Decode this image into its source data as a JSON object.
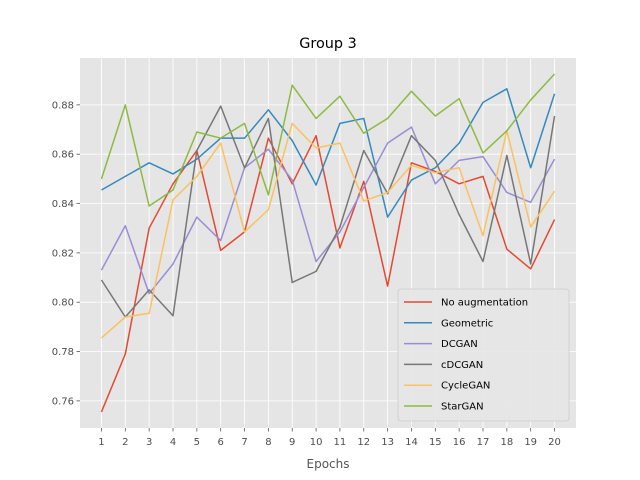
{
  "chart_data": {
    "type": "line",
    "title": "Group 3",
    "xlabel": "Epochs",
    "ylabel": "",
    "x": [
      1,
      2,
      3,
      4,
      5,
      6,
      7,
      8,
      9,
      10,
      11,
      12,
      13,
      14,
      15,
      16,
      17,
      18,
      19,
      20
    ],
    "x_ticks": [
      "1",
      "2",
      "3",
      "4",
      "5",
      "6",
      "7",
      "8",
      "9",
      "10",
      "11",
      "12",
      "13",
      "14",
      "15",
      "16",
      "17",
      "18",
      "19",
      "20"
    ],
    "ylim": [
      0.749,
      0.899
    ],
    "y_ticks": [
      0.76,
      0.78,
      0.8,
      0.82,
      0.84,
      0.86,
      0.88
    ],
    "y_tick_labels": [
      "0.76",
      "0.78",
      "0.80",
      "0.82",
      "0.84",
      "0.86",
      "0.88"
    ],
    "grid": true,
    "legend_position": "bottom-right",
    "series": [
      {
        "name": "No augmentation",
        "color": "#E24A33",
        "values": [
          0.7555,
          0.779,
          0.83,
          0.848,
          0.8615,
          0.821,
          0.8285,
          0.8665,
          0.848,
          0.8675,
          0.822,
          0.849,
          0.8065,
          0.8565,
          0.853,
          0.848,
          0.851,
          0.8215,
          0.8135,
          0.8335
        ]
      },
      {
        "name": "Geometric",
        "color": "#348ABD",
        "values": [
          0.8455,
          0.851,
          0.8565,
          0.852,
          0.858,
          0.8665,
          0.8665,
          0.878,
          0.8655,
          0.8475,
          0.8725,
          0.8745,
          0.8345,
          0.8495,
          0.8545,
          0.8645,
          0.881,
          0.8865,
          0.8545,
          0.8845
        ]
      },
      {
        "name": "DCGAN",
        "color": "#988ED5",
        "values": [
          0.813,
          0.831,
          0.8035,
          0.8155,
          0.8345,
          0.825,
          0.8545,
          0.862,
          0.8495,
          0.8165,
          0.8285,
          0.8465,
          0.8645,
          0.871,
          0.848,
          0.8575,
          0.859,
          0.8445,
          0.8405,
          0.858
        ]
      },
      {
        "name": "cDCGAN",
        "color": "#777777",
        "values": [
          0.809,
          0.794,
          0.805,
          0.7945,
          0.8615,
          0.8795,
          0.8545,
          0.8745,
          0.808,
          0.8125,
          0.8305,
          0.8615,
          0.844,
          0.8675,
          0.8575,
          0.8355,
          0.8165,
          0.8595,
          0.8155,
          0.8755
        ]
      },
      {
        "name": "CycleGAN",
        "color": "#FBC15E",
        "values": [
          0.7855,
          0.794,
          0.7955,
          0.8415,
          0.851,
          0.8645,
          0.8285,
          0.8375,
          0.8725,
          0.8625,
          0.8645,
          0.841,
          0.8445,
          0.8555,
          0.8525,
          0.8545,
          0.827,
          0.8695,
          0.8305,
          0.845
        ]
      },
      {
        "name": "StarGAN",
        "color": "#8EBA42",
        "values": [
          0.85,
          0.88,
          0.839,
          0.8455,
          0.869,
          0.8665,
          0.8725,
          0.8435,
          0.888,
          0.8745,
          0.8835,
          0.8685,
          0.8745,
          0.8855,
          0.8755,
          0.8825,
          0.8605,
          0.8695,
          0.882,
          0.8925
        ]
      }
    ]
  }
}
